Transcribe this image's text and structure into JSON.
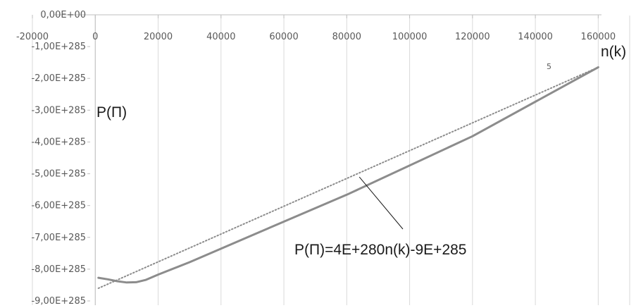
{
  "chart_data": {
    "type": "line",
    "xlabel": "n(k)",
    "ylabel": "P(П)",
    "xlim": [
      -20000,
      170000
    ],
    "ylim": [
      -9e+285,
      0.0
    ],
    "x_ticks": [
      {
        "value": -20000,
        "label": "-20000"
      },
      {
        "value": 0,
        "label": "0"
      },
      {
        "value": 20000,
        "label": "20000"
      },
      {
        "value": 40000,
        "label": "40000"
      },
      {
        "value": 60000,
        "label": "60000"
      },
      {
        "value": 80000,
        "label": "80000"
      },
      {
        "value": 100000,
        "label": "100000"
      },
      {
        "value": 120000,
        "label": "120000"
      },
      {
        "value": 140000,
        "label": "140000"
      },
      {
        "value": 160000,
        "label": "160000"
      }
    ],
    "y_ticks": [
      {
        "value": 0.0,
        "label": "0,00E+00"
      },
      {
        "value": -1e+285,
        "label": "-1,00E+285"
      },
      {
        "value": -2e+285,
        "label": "-2,00E+285"
      },
      {
        "value": -3e+285,
        "label": "-3,00E+285"
      },
      {
        "value": -4e+285,
        "label": "-4,00E+285"
      },
      {
        "value": -5e+285,
        "label": "-5,00E+285"
      },
      {
        "value": -6e+285,
        "label": "-6,00E+285"
      },
      {
        "value": -7e+285,
        "label": "-7,00E+285"
      },
      {
        "value": -8e+285,
        "label": "-8,00E+285"
      },
      {
        "value": -9e+285,
        "label": "-9,00E+285"
      }
    ],
    "grid": "vertical",
    "series": [
      {
        "style": "solid",
        "color": "#8c8c8c",
        "x": [
          1000,
          4000,
          7000,
          10000,
          13000,
          16000,
          20000,
          30000,
          50000,
          80000,
          120000,
          160000
        ],
        "y": [
          -8.27e+285,
          -8.32e+285,
          -8.38e+285,
          -8.42e+285,
          -8.41e+285,
          -8.34e+285,
          -8.17e+285,
          -7.78e+285,
          -6.93e+285,
          -5.66e+285,
          -3.82e+285,
          -1.65e+285
        ]
      },
      {
        "style": "dotted",
        "color": "#8c8c8c",
        "x": [
          1000,
          160000
        ],
        "y": [
          -8.6e+285,
          -1.65e+285
        ]
      }
    ],
    "annotation": {
      "text": "P(П)=4E+280n(k)-9E+285",
      "points_to": {
        "x": 84000,
        "y": -5.1e+285
      }
    },
    "stray_mark": "5"
  }
}
